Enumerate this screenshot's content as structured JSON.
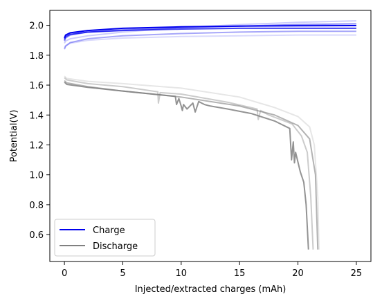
{
  "chart_data": {
    "type": "line",
    "xlabel": "Injected/extracted charges (mAh)",
    "ylabel": "Potential(V)",
    "xlim": [
      -1.25,
      26.25
    ],
    "ylim": [
      0.42,
      2.1
    ],
    "xticks": [
      0,
      5,
      10,
      15,
      20,
      25
    ],
    "yticks": [
      0.6,
      0.8,
      1.0,
      1.2,
      1.4,
      1.6,
      1.8,
      2.0
    ],
    "xtick_labels": [
      "0",
      "5",
      "10",
      "15",
      "20",
      "25"
    ],
    "ytick_labels": [
      "0.6",
      "0.8",
      "1.0",
      "1.2",
      "1.4",
      "1.6",
      "1.8",
      "2.0"
    ],
    "grid": false,
    "legend_position": "bottom-left",
    "legend": [
      {
        "label": "Charge",
        "color": "#0000ee"
      },
      {
        "label": "Discharge",
        "color": "#808080"
      }
    ],
    "series": [
      {
        "group": "Charge",
        "color": "#0000ee",
        "opacity": 1.0,
        "x": [
          0,
          0.1,
          0.5,
          2,
          5,
          10,
          15,
          20,
          25
        ],
        "y": [
          1.915,
          1.935,
          1.95,
          1.965,
          1.98,
          1.99,
          1.995,
          1.997,
          1.998
        ]
      },
      {
        "group": "Charge",
        "color": "#0000ee",
        "opacity": 0.75,
        "x": [
          0,
          0.1,
          0.5,
          2,
          5,
          10,
          15,
          20,
          25
        ],
        "y": [
          1.905,
          1.925,
          1.94,
          1.955,
          1.965,
          1.975,
          1.98,
          1.98,
          1.98
        ]
      },
      {
        "group": "Charge",
        "color": "#0000ee",
        "opacity": 0.45,
        "x": [
          0,
          0.1,
          0.5,
          2,
          5,
          10,
          15,
          20,
          25
        ],
        "y": [
          1.895,
          1.915,
          1.935,
          1.955,
          1.97,
          1.985,
          1.995,
          2.005,
          2.01
        ]
      },
      {
        "group": "Charge",
        "color": "#0000ee",
        "opacity": 0.35,
        "x": [
          0,
          0.1,
          0.5,
          2,
          5,
          10,
          15,
          20,
          25
        ],
        "y": [
          1.84,
          1.86,
          1.885,
          1.91,
          1.93,
          1.945,
          1.955,
          1.96,
          1.96
        ]
      },
      {
        "group": "Charge",
        "color": "#0000ee",
        "opacity": 0.2,
        "x": [
          0,
          0.1,
          0.5,
          2,
          5,
          10,
          15,
          20,
          25
        ],
        "y": [
          1.88,
          1.895,
          1.91,
          1.93,
          1.955,
          1.985,
          2.005,
          2.02,
          2.03
        ]
      },
      {
        "group": "Charge",
        "color": "#0000ee",
        "opacity": 0.15,
        "x": [
          0,
          0.1,
          0.5,
          2,
          5,
          10,
          15,
          20,
          25
        ],
        "y": [
          1.85,
          1.865,
          1.88,
          1.9,
          1.915,
          1.925,
          1.93,
          1.935,
          1.935
        ]
      },
      {
        "group": "Discharge",
        "color": "#808080",
        "opacity": 0.2,
        "x": [
          0,
          0.2,
          2,
          5,
          10,
          15,
          18,
          20,
          21,
          21.4,
          21.7,
          21.8
        ],
        "y": [
          1.66,
          1.645,
          1.625,
          1.61,
          1.58,
          1.52,
          1.45,
          1.39,
          1.32,
          1.2,
          0.85,
          0.5
        ]
      },
      {
        "group": "Discharge",
        "color": "#808080",
        "opacity": 0.4,
        "x": [
          0,
          0.2,
          2,
          5,
          8,
          8.05,
          8.2,
          10,
          14,
          16.5,
          16.6,
          16.8,
          17.5,
          19.5,
          20.3,
          20.8,
          21.1,
          21.3
        ],
        "y": [
          1.65,
          1.635,
          1.61,
          1.59,
          1.555,
          1.48,
          1.55,
          1.54,
          1.485,
          1.44,
          1.37,
          1.43,
          1.4,
          1.34,
          1.26,
          1.15,
          0.85,
          0.5
        ]
      },
      {
        "group": "Discharge",
        "color": "#808080",
        "opacity": 0.6,
        "x": [
          0,
          0.2,
          2,
          5,
          10,
          15,
          18,
          20,
          21,
          21.5,
          21.7
        ],
        "y": [
          1.63,
          1.615,
          1.59,
          1.56,
          1.52,
          1.46,
          1.4,
          1.33,
          1.24,
          1.0,
          0.5
        ]
      },
      {
        "group": "Discharge",
        "color": "#808080",
        "opacity": 0.85,
        "x": [
          0,
          0.2,
          2,
          5,
          9.5,
          9.6,
          9.8,
          10,
          10.1,
          10.2,
          10.5,
          11,
          11.2,
          11.5,
          12,
          12.5,
          14,
          16,
          18,
          19.3,
          19.45,
          19.6,
          19.7,
          19.8,
          20.2,
          20.5,
          20.7,
          20.9
        ],
        "y": [
          1.62,
          1.605,
          1.585,
          1.56,
          1.525,
          1.47,
          1.51,
          1.46,
          1.43,
          1.47,
          1.44,
          1.48,
          1.42,
          1.49,
          1.47,
          1.46,
          1.44,
          1.41,
          1.36,
          1.31,
          1.1,
          1.22,
          1.08,
          1.15,
          1.02,
          0.95,
          0.8,
          0.5
        ]
      }
    ]
  }
}
